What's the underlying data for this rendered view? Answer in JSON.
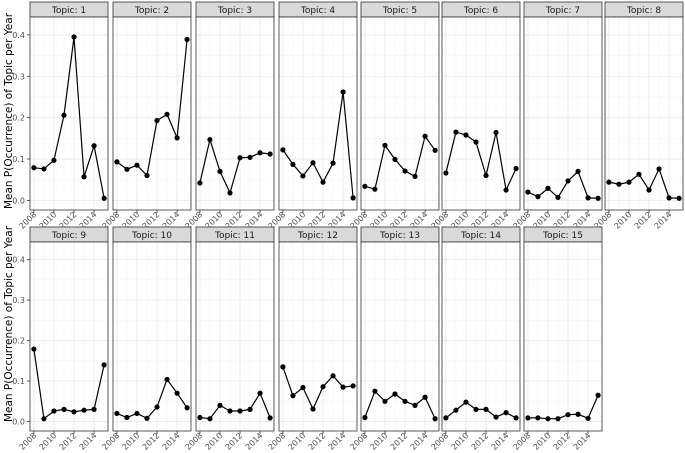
{
  "chart_data": {
    "type": "line",
    "layout": "facet-grid",
    "ylabel": "Mean P(Occurrence) of Topic per Year",
    "xlabel": "",
    "x_ticks": [
      "2008",
      "2010",
      "2012",
      "2014"
    ],
    "y_ticks": [
      "0.0",
      "0.1",
      "0.2",
      "0.3",
      "0.4"
    ],
    "xlim": [
      2008,
      2015
    ],
    "ylim": [
      0,
      0.42
    ],
    "grid": true,
    "x": [
      2008,
      2009,
      2010,
      2011,
      2012,
      2013,
      2014,
      2015
    ],
    "facets": [
      {
        "label": "Topic: 1",
        "values": [
          0.079,
          0.076,
          0.097,
          0.206,
          0.395,
          0.057,
          0.132,
          0.005
        ]
      },
      {
        "label": "Topic: 2",
        "values": [
          0.093,
          0.075,
          0.085,
          0.06,
          0.193,
          0.208,
          0.151,
          0.389
        ]
      },
      {
        "label": "Topic: 3",
        "values": [
          0.042,
          0.147,
          0.07,
          0.018,
          0.103,
          0.104,
          0.115,
          0.112
        ]
      },
      {
        "label": "Topic: 4",
        "values": [
          0.122,
          0.087,
          0.059,
          0.091,
          0.044,
          0.09,
          0.262,
          0.006
        ]
      },
      {
        "label": "Topic: 5",
        "values": [
          0.034,
          0.027,
          0.133,
          0.099,
          0.071,
          0.058,
          0.155,
          0.121
        ]
      },
      {
        "label": "Topic: 6",
        "values": [
          0.066,
          0.165,
          0.158,
          0.141,
          0.06,
          0.164,
          0.025,
          0.077
        ]
      },
      {
        "label": "Topic: 7",
        "values": [
          0.02,
          0.009,
          0.029,
          0.007,
          0.047,
          0.07,
          0.006,
          0.005
        ]
      },
      {
        "label": "Topic: 8",
        "values": [
          0.044,
          0.039,
          0.044,
          0.063,
          0.025,
          0.076,
          0.006,
          0.005
        ]
      },
      {
        "label": "Topic: 9",
        "values": [
          0.179,
          0.007,
          0.026,
          0.03,
          0.024,
          0.028,
          0.03,
          0.14
        ]
      },
      {
        "label": "Topic: 10",
        "values": [
          0.02,
          0.01,
          0.02,
          0.008,
          0.036,
          0.104,
          0.07,
          0.034
        ]
      },
      {
        "label": "Topic: 11",
        "values": [
          0.01,
          0.007,
          0.04,
          0.026,
          0.026,
          0.03,
          0.07,
          0.009
        ]
      },
      {
        "label": "Topic: 12",
        "values": [
          0.135,
          0.064,
          0.084,
          0.031,
          0.086,
          0.113,
          0.085,
          0.088
        ]
      },
      {
        "label": "Topic: 13",
        "values": [
          0.01,
          0.075,
          0.05,
          0.068,
          0.05,
          0.04,
          0.06,
          0.007
        ]
      },
      {
        "label": "Topic: 14",
        "values": [
          0.009,
          0.028,
          0.048,
          0.03,
          0.03,
          0.011,
          0.022,
          0.009
        ]
      },
      {
        "label": "Topic: 15",
        "values": [
          0.009,
          0.009,
          0.007,
          0.007,
          0.017,
          0.018,
          0.008,
          0.065
        ]
      }
    ]
  },
  "colors": {
    "strip_fill": "#d9d9d9",
    "strip_border": "#333333",
    "panel_border": "#333333",
    "grid_major": "#ebebeb",
    "grid_minor": "#f5f5f5",
    "line": "#000000",
    "point": "#000000",
    "tick_text": "#4d4d4d"
  }
}
